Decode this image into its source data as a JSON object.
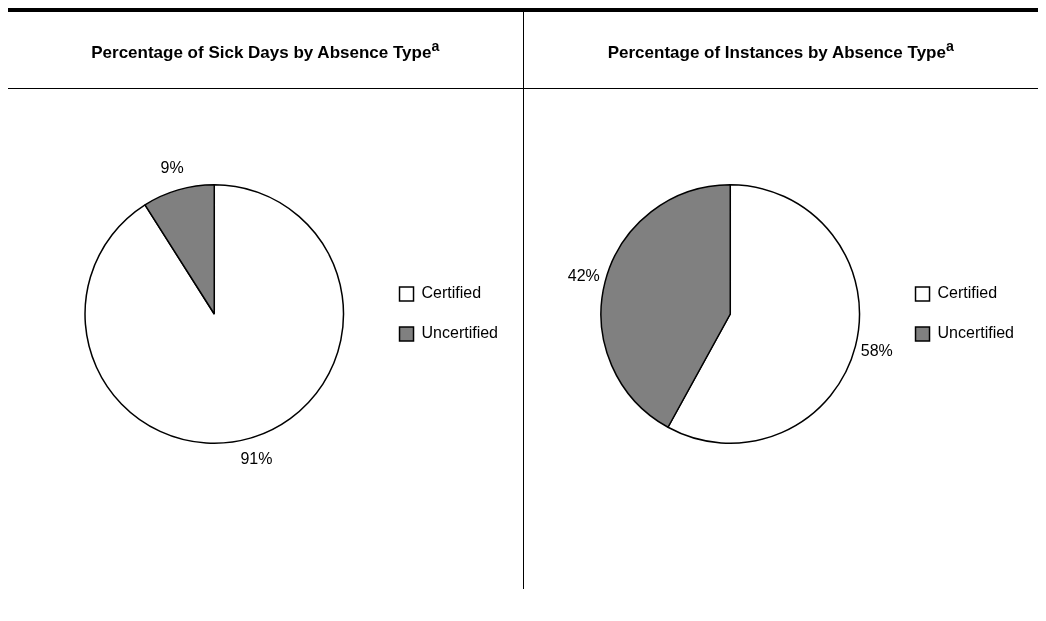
{
  "chart_data": [
    {
      "type": "pie",
      "title": "Percentage of Sick Days by Absence Type$^{a}$",
      "categories": [
        "Certified",
        "Uncertified"
      ],
      "values": [
        91,
        9
      ],
      "colors": [
        "#ffffff",
        "#808080"
      ],
      "value_labels": [
        "91%",
        "9%"
      ],
      "legend": "right"
    },
    {
      "type": "pie",
      "title": "Percentage of Instances by Absence Type$^{a}$",
      "categories": [
        "Certified",
        "Uncertified"
      ],
      "values": [
        58,
        42
      ],
      "colors": [
        "#ffffff",
        "#808080"
      ],
      "value_labels": [
        "58%",
        "42%"
      ],
      "legend": "right"
    }
  ]
}
